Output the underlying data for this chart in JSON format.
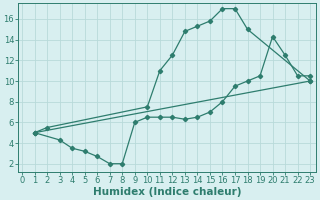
{
  "line1_x": [
    1,
    2,
    10,
    11,
    12,
    13,
    14,
    15,
    16,
    17,
    18,
    23
  ],
  "line1_y": [
    5.0,
    5.5,
    7.5,
    11.0,
    12.5,
    14.8,
    15.3,
    15.8,
    17.0,
    17.0,
    15.0,
    10.0
  ],
  "line2_x": [
    1,
    23
  ],
  "line2_y": [
    5.0,
    10.0
  ],
  "line3_x": [
    1,
    3,
    4,
    5,
    6,
    7,
    8,
    9,
    10,
    11,
    12,
    13,
    14,
    15,
    16,
    17,
    18,
    19,
    20,
    21,
    22,
    23
  ],
  "line3_y": [
    5.0,
    4.3,
    3.5,
    3.2,
    2.7,
    2.0,
    2.0,
    6.0,
    6.5,
    6.5,
    6.5,
    6.3,
    6.5,
    7.0,
    8.0,
    9.5,
    10.0,
    10.5,
    14.3,
    12.5,
    10.5,
    10.5
  ],
  "line_color": "#2e7d6e",
  "bg_color": "#d8eff0",
  "grid_color": "#b8dada",
  "xlabel": "Humidex (Indice chaleur)",
  "xlim": [
    -0.3,
    23.5
  ],
  "ylim": [
    1.2,
    17.5
  ],
  "xticks": [
    0,
    1,
    2,
    3,
    4,
    5,
    6,
    7,
    8,
    9,
    10,
    11,
    12,
    13,
    14,
    15,
    16,
    17,
    18,
    19,
    20,
    21,
    22,
    23
  ],
  "yticks": [
    2,
    4,
    6,
    8,
    10,
    12,
    14,
    16
  ],
  "marker": "D",
  "markersize": 2.2,
  "linewidth": 0.9,
  "xlabel_fontsize": 7.5,
  "tick_fontsize": 6.0
}
